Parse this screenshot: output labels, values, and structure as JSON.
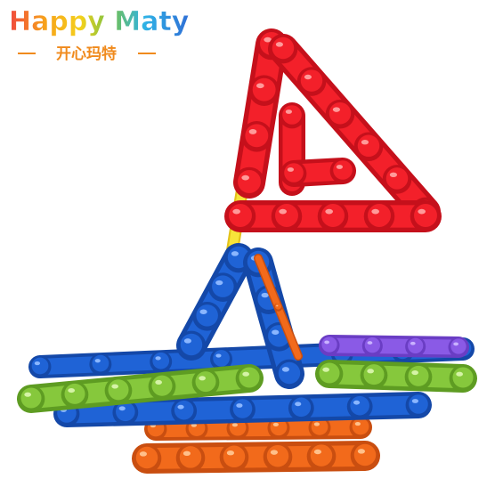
{
  "brand": {
    "name": "Happy Maty",
    "subtitle": "开心玛特"
  }
}
